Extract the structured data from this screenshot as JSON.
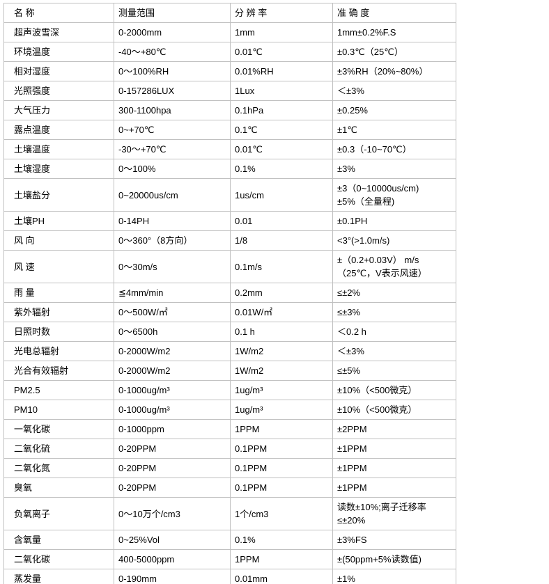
{
  "page": {
    "background": "#ffffff",
    "text_color": "#000000",
    "border_color": "#c0c0c0"
  },
  "table": {
    "headers": [
      {
        "key": "name",
        "label": "名 称"
      },
      {
        "key": "range",
        "label": "测量范围"
      },
      {
        "key": "resolution",
        "label": "分 辨 率"
      },
      {
        "key": "accuracy",
        "label": "准 确 度"
      }
    ],
    "rows": [
      {
        "name": "超声波雪深",
        "range": "0-2000mm",
        "resolution": "1mm",
        "accuracy": "1mm±0.2%F.S"
      },
      {
        "name": "环境温度",
        "range": "-40～+80℃",
        "resolution": "0.01℃",
        "accuracy": "±0.3℃（25℃）"
      },
      {
        "name": "相对湿度",
        "range": "0～100%RH",
        "resolution": "0.01%RH",
        "accuracy": "±3%RH（20%~80%）"
      },
      {
        "name": "光照强度",
        "range": "0-157286LUX",
        "resolution": "1Lux",
        "accuracy": "＜±3%"
      },
      {
        "name": "大气压力",
        "range": "300-1100hpa",
        "resolution": "0.1hPa",
        "accuracy": "±0.25%"
      },
      {
        "name": "露点温度",
        "range": "0~+70℃",
        "resolution": "0.1℃",
        "accuracy": "±1℃"
      },
      {
        "name": "土壤温度",
        "range": "-30～+70℃",
        "resolution": "0.01℃",
        "accuracy": "±0.3（-10~70℃）"
      },
      {
        "name": "土壤湿度",
        "range": "0～100%",
        "resolution": "0.1%",
        "accuracy": "±3%"
      },
      {
        "name": "土壤盐分",
        "range": "0~20000us/cm",
        "resolution": "1us/cm",
        "accuracy": "±3（0~10000us/cm)\n±5%（全量程)"
      },
      {
        "name": "土壤PH",
        "range": "0-14PH",
        "resolution": "0.01",
        "accuracy": "±0.1PH"
      },
      {
        "name": "风 向",
        "range": "0～360°（8方向）",
        "resolution": "1/8",
        "accuracy": "<3°(>1.0m/s)"
      },
      {
        "name": "风 速",
        "range": "0～30m/s",
        "resolution": "0.1m/s",
        "accuracy": "±（0.2+0.03V） m/s\n（25℃，V表示风速）"
      },
      {
        "name": "雨 量",
        "range": "≦4mm/min",
        "resolution": "0.2mm",
        "accuracy": "≤±2%"
      },
      {
        "name": "紫外辐射",
        "range": "0～500W/㎡",
        "resolution": "0.01W/㎡",
        "accuracy": "≤±3%"
      },
      {
        "name": "日照时数",
        "range": "0～6500h",
        "resolution": "0.1 h",
        "accuracy": "＜0.2 h"
      },
      {
        "name": "光电总辐射",
        "range": "0-2000W/m2",
        "resolution": "1W/m2",
        "accuracy": "＜±3%"
      },
      {
        "name": "光合有效辐射",
        "range": "0-2000W/m2",
        "resolution": "1W/m2",
        "accuracy": "≤±5%"
      },
      {
        "name": "PM2.5",
        "range": "0-1000ug/m³",
        "resolution": "1ug/m³",
        "accuracy": "±10%（<500微克）"
      },
      {
        "name": "PM10",
        "range": "0-1000ug/m³",
        "resolution": "1ug/m³",
        "accuracy": "±10%（<500微克）"
      },
      {
        "name": "一氧化碳",
        "range": "0-1000ppm",
        "resolution": "1PPM",
        "accuracy": "±2PPM"
      },
      {
        "name": "二氧化硫",
        "range": "0-20PPM",
        "resolution": "0.1PPM",
        "accuracy": "±1PPM"
      },
      {
        "name": "二氧化氮",
        "range": "0-20PPM",
        "resolution": "0.1PPM",
        "accuracy": "±1PPM"
      },
      {
        "name": "臭氧",
        "range": "0-20PPM",
        "resolution": "0.1PPM",
        "accuracy": "±1PPM"
      },
      {
        "name": "负氧离子",
        "range": "0～10万个/cm3",
        "resolution": "1个/cm3",
        "accuracy": "读数±10%;离子迁移率\n≤±20%"
      },
      {
        "name": "含氧量",
        "range": "0~25%Vol",
        "resolution": "0.1%",
        "accuracy": "±3%FS"
      },
      {
        "name": "二氧化碳",
        "range": "400-5000ppm",
        "resolution": "1PPM",
        "accuracy": "±(50ppm+5%读数值)"
      },
      {
        "name": "蒸发量",
        "range": "0-190mm",
        "resolution": "0.01mm",
        "accuracy": "±1%"
      }
    ]
  }
}
